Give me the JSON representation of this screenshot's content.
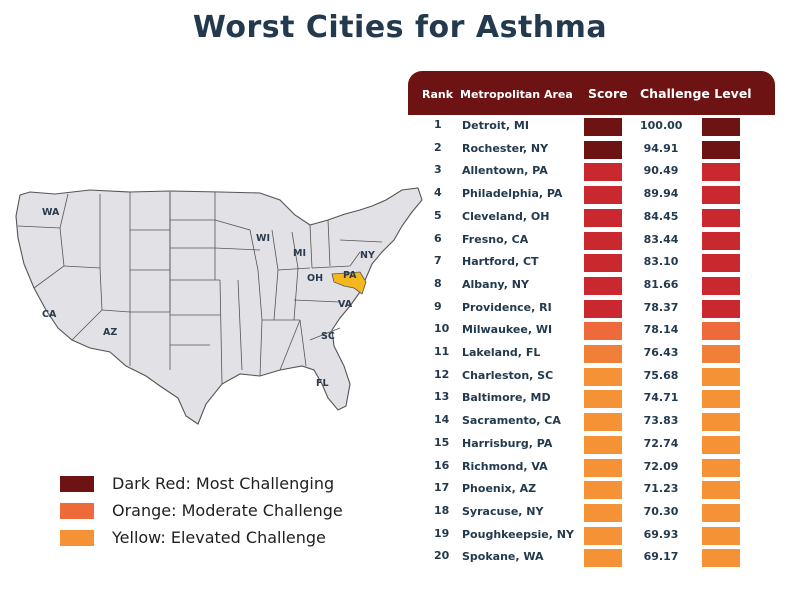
{
  "title": "Worst Cities for Asthma",
  "table_headers": {
    "rank": "Rank",
    "metro": "Metropolitan Area",
    "score": "Score",
    "level": "Challenge Level"
  },
  "colors": {
    "header": "#6e1313",
    "dark_red": "#6e1313",
    "red": "#c8282e",
    "orange": "#ee6a3a",
    "yellow": "#f59236",
    "highlight_state": "#f4b81f",
    "state_fill": "#e2e2e6",
    "state_stroke": "#555555"
  },
  "map_labels": [
    "WA",
    "CA",
    "AZ",
    "WI",
    "MI",
    "OH",
    "PA",
    "NY",
    "VA",
    "SC",
    "FL"
  ],
  "legend": [
    {
      "label": "Dark Red: Most Challenging",
      "color": "#6e1313"
    },
    {
      "label": "Orange: Moderate Challenge",
      "color": "#ee6a3a"
    },
    {
      "label": "Yellow: Elevated Challenge",
      "color": "#f59236"
    }
  ],
  "chart_data": {
    "type": "table",
    "title": "Worst Cities for Asthma",
    "columns": [
      "Rank",
      "Metropolitan Area",
      "Score",
      "Challenge Level"
    ],
    "rows": [
      {
        "rank": "1",
        "metro": "Detroit, MI",
        "score": "100.00",
        "level_color": "#6e1313"
      },
      {
        "rank": "2",
        "metro": "Rochester, NY",
        "score": "94.91",
        "level_color": "#6e1313"
      },
      {
        "rank": "3",
        "metro": "Allentown, PA",
        "score": "90.49",
        "level_color": "#c8282e"
      },
      {
        "rank": "4",
        "metro": "Philadelphia, PA",
        "score": "89.94",
        "level_color": "#c8282e"
      },
      {
        "rank": "5",
        "metro": "Cleveland, OH",
        "score": "84.45",
        "level_color": "#c8282e"
      },
      {
        "rank": "6",
        "metro": "Fresno, CA",
        "score": "83.44",
        "level_color": "#c8282e"
      },
      {
        "rank": "7",
        "metro": "Hartford, CT",
        "score": "83.10",
        "level_color": "#c8282e"
      },
      {
        "rank": "8",
        "metro": "Albany, NY",
        "score": "81.66",
        "level_color": "#c8282e"
      },
      {
        "rank": "9",
        "metro": "Providence, RI",
        "score": "78.37",
        "level_color": "#c8282e"
      },
      {
        "rank": "10",
        "metro": "Milwaukee, WI",
        "score": "78.14",
        "level_color": "#ee6a3a"
      },
      {
        "rank": "11",
        "metro": "Lakeland, FL",
        "score": "76.43",
        "level_color": "#f07f38"
      },
      {
        "rank": "12",
        "metro": "Charleston, SC",
        "score": "75.68",
        "level_color": "#f59236"
      },
      {
        "rank": "13",
        "metro": "Baltimore, MD",
        "score": "74.71",
        "level_color": "#f59236"
      },
      {
        "rank": "14",
        "metro": "Sacramento, CA",
        "score": "73.83",
        "level_color": "#f59236"
      },
      {
        "rank": "15",
        "metro": "Harrisburg, PA",
        "score": "72.74",
        "level_color": "#f59236"
      },
      {
        "rank": "16",
        "metro": "Richmond, VA",
        "score": "72.09",
        "level_color": "#f59236"
      },
      {
        "rank": "17",
        "metro": "Phoenix, AZ",
        "score": "71.23",
        "level_color": "#f59236"
      },
      {
        "rank": "18",
        "metro": "Syracuse, NY",
        "score": "70.30",
        "level_color": "#f59236"
      },
      {
        "rank": "19",
        "metro": "Poughkeepsie, NY",
        "score": "69.93",
        "level_color": "#f59236"
      },
      {
        "rank": "20",
        "metro": "Spokane, WA",
        "score": "69.17",
        "level_color": "#f59236"
      }
    ]
  }
}
